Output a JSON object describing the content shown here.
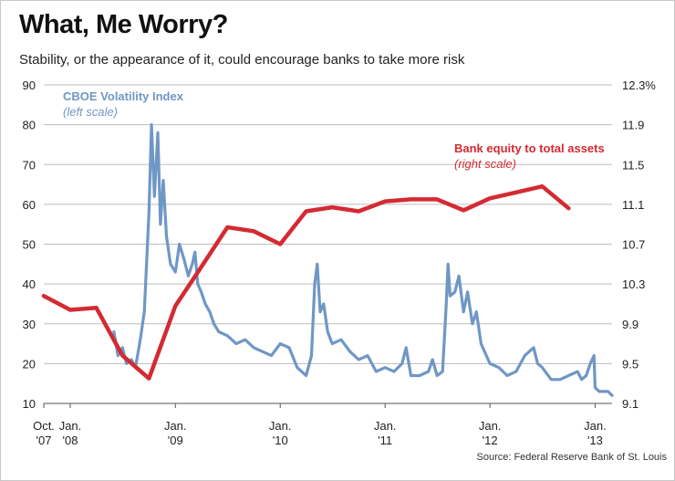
{
  "chart_data": {
    "type": "line",
    "title": "What, Me Worry?",
    "subtitle": "Stability, or the appearance of it, could encourage banks to take more risk",
    "source": "Source: Federal Reserve Bank of St. Louis",
    "grid": true,
    "left_axis": {
      "ylim": [
        10,
        90
      ],
      "ticks": [
        10,
        20,
        30,
        40,
        50,
        60,
        70,
        80,
        90
      ],
      "labels": [
        "10",
        "20",
        "30",
        "40",
        "50",
        "60",
        "70",
        "80",
        "90"
      ]
    },
    "right_axis": {
      "ylim": [
        9.1,
        12.3
      ],
      "ticks": [
        9.1,
        9.5,
        9.9,
        10.3,
        10.7,
        11.1,
        11.5,
        11.9,
        12.3
      ],
      "labels": [
        "9.1",
        "9.5",
        "9.9",
        "10.3",
        "10.7",
        "11.1",
        "11.5",
        "11.9",
        "12.3%"
      ]
    },
    "x_axis": {
      "xlim": [
        "2007-10",
        "2013-03"
      ],
      "ticks": [
        {
          "x": "2007-10",
          "line1": "Oct.",
          "line2": "'07"
        },
        {
          "x": "2008-01",
          "line1": "Jan.",
          "line2": "'08"
        },
        {
          "x": "2009-01",
          "line1": "Jan.",
          "line2": "'09"
        },
        {
          "x": "2010-01",
          "line1": "Jan.",
          "line2": "'10"
        },
        {
          "x": "2011-01",
          "line1": "Jan.",
          "line2": "'11"
        },
        {
          "x": "2012-01",
          "line1": "Jan.",
          "line2": "'12"
        },
        {
          "x": "2013-01",
          "line1": "Jan.",
          "line2": "'13"
        }
      ]
    },
    "series": [
      {
        "name": "CBOE Volatility Index",
        "name_sub": "(left scale)",
        "color": "#6f97c6",
        "axis": "left",
        "x": [
          "2008-06",
          "2008-06-15",
          "2008-07",
          "2008-07-15",
          "2008-08",
          "2008-08-15",
          "2008-09",
          "2008-09-15",
          "2008-10",
          "2008-10-10",
          "2008-10-20",
          "2008-11",
          "2008-11-10",
          "2008-11-20",
          "2008-12",
          "2008-12-15",
          "2009-01",
          "2009-01-15",
          "2009-02",
          "2009-02-15",
          "2009-03",
          "2009-03-10",
          "2009-03-20",
          "2009-04",
          "2009-04-15",
          "2009-05",
          "2009-05-15",
          "2009-06",
          "2009-07",
          "2009-08",
          "2009-09",
          "2009-10",
          "2009-11",
          "2009-12",
          "2010-01",
          "2010-02",
          "2010-03",
          "2010-04",
          "2010-04-20",
          "2010-05",
          "2010-05-10",
          "2010-05-20",
          "2010-06",
          "2010-06-15",
          "2010-07",
          "2010-08",
          "2010-09",
          "2010-10",
          "2010-11",
          "2010-12",
          "2011-01",
          "2011-02",
          "2011-03",
          "2011-03-15",
          "2011-04",
          "2011-05",
          "2011-06",
          "2011-06-15",
          "2011-07",
          "2011-07-20",
          "2011-08",
          "2011-08-08",
          "2011-08-15",
          "2011-09",
          "2011-09-15",
          "2011-10",
          "2011-10-15",
          "2011-11",
          "2011-11-15",
          "2011-12",
          "2012-01",
          "2012-02",
          "2012-03",
          "2012-04",
          "2012-05",
          "2012-06",
          "2012-06-15",
          "2012-07",
          "2012-08",
          "2012-09",
          "2012-10",
          "2012-11",
          "2012-11-15",
          "2012-12",
          "2012-12-15",
          "2012-12-28",
          "2013-01",
          "2013-01-15",
          "2013-02",
          "2013-02-15",
          "2013-03"
        ],
        "values": [
          28,
          22,
          24,
          20,
          21,
          19,
          26,
          33,
          58,
          80,
          62,
          78,
          55,
          66,
          52,
          45,
          43,
          50,
          46,
          42,
          45,
          48,
          40,
          38,
          35,
          33,
          30,
          28,
          27,
          25,
          26,
          24,
          23,
          22,
          25,
          24,
          19,
          17,
          22,
          40,
          45,
          33,
          35,
          28,
          25,
          26,
          23,
          21,
          22,
          18,
          19,
          18,
          20,
          24,
          17,
          17,
          18,
          21,
          17,
          18,
          34,
          45,
          37,
          38,
          42,
          33,
          38,
          30,
          33,
          25,
          20,
          19,
          17,
          18,
          22,
          24,
          20,
          19,
          16,
          16,
          17,
          18,
          16,
          17,
          20,
          22,
          14,
          13,
          13,
          13,
          12
        ]
      },
      {
        "name": "Bank equity to total assets",
        "name_sub": "(right scale)",
        "color": "#d42a32",
        "axis": "right",
        "x": [
          "2007-10",
          "2008-01",
          "2008-04",
          "2008-07",
          "2008-10",
          "2009-01",
          "2009-04",
          "2009-07",
          "2009-10",
          "2010-01",
          "2010-04",
          "2010-07",
          "2010-10",
          "2011-01",
          "2011-04",
          "2011-07",
          "2011-10",
          "2012-01",
          "2012-04",
          "2012-07",
          "2012-10"
        ],
        "values": [
          10.18,
          10.04,
          10.06,
          9.58,
          9.35,
          10.08,
          10.47,
          10.87,
          10.83,
          10.7,
          11.03,
          11.07,
          11.03,
          11.13,
          11.15,
          11.15,
          11.04,
          11.16,
          11.22,
          11.28,
          11.06
        ]
      }
    ]
  }
}
